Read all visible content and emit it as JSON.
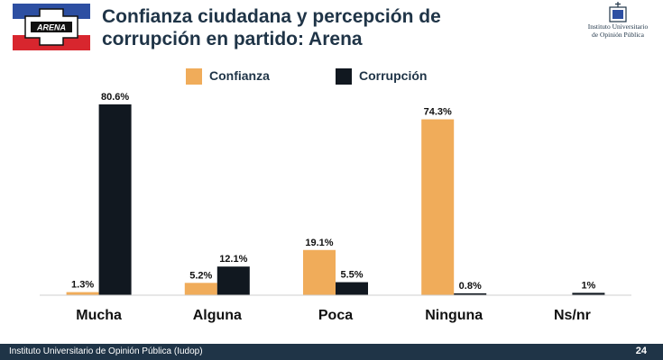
{
  "title_line1": "Confianza ciudadana y percepción de",
  "title_line2": "corrupción en partido: Arena",
  "party_logo_text": "ARENA",
  "institute": {
    "logo_line1": "Instituto Universitario",
    "logo_line2": "de Opinión Pública"
  },
  "footer": {
    "text": "Instituto Universitario de Opinión Pública (Iudop)",
    "page": "24"
  },
  "colors": {
    "confianza": "#f0ac5a",
    "corrupcion": "#111820",
    "title": "#1f3447",
    "footer_bg": "#1f3447",
    "flag_blue": "#2d4fa2",
    "flag_red": "#d8262e"
  },
  "chart_data": {
    "type": "bar",
    "title": "Confianza ciudadana y percepción de corrupción en partido: Arena",
    "categories": [
      "Mucha",
      "Alguna",
      "Poca",
      "Ninguna",
      "Ns/nr"
    ],
    "series": [
      {
        "name": "Confianza",
        "values": [
          1.3,
          5.2,
          19.1,
          74.3,
          null
        ],
        "labels": [
          "1.3%",
          "5.2%",
          "19.1%",
          "74.3%",
          ""
        ]
      },
      {
        "name": "Corrupción",
        "values": [
          80.6,
          12.1,
          5.5,
          0.8,
          1
        ],
        "labels": [
          "80.6%",
          "12.1%",
          "5.5%",
          "0.8%",
          "1%"
        ]
      }
    ],
    "ylim": [
      0,
      80.6
    ],
    "legend_position": "top",
    "grid": false,
    "xlabel": "",
    "ylabel": ""
  }
}
